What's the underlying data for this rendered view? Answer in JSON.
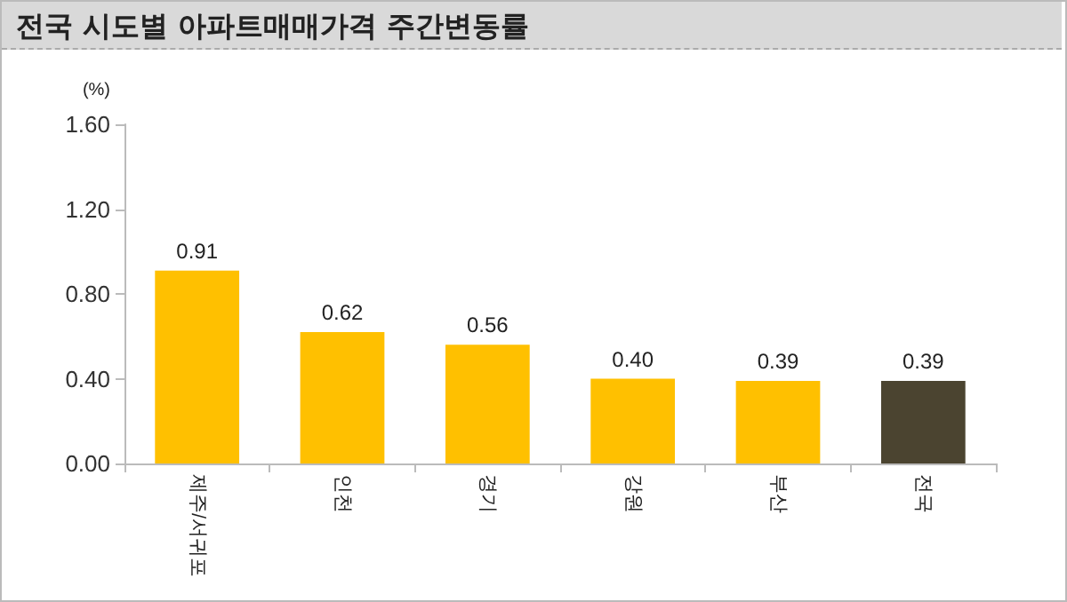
{
  "chart_data": {
    "type": "bar",
    "title": "전국 시도별 아파트매매가격 주간변동률",
    "ylabel": "(%)",
    "categories": [
      "제주/서귀포",
      "인천",
      "경기",
      "강원",
      "부산",
      "전국"
    ],
    "values": [
      0.91,
      0.62,
      0.56,
      0.4,
      0.39,
      0.39
    ],
    "colors": [
      "#ffc000",
      "#ffc000",
      "#ffc000",
      "#ffc000",
      "#ffc000",
      "#4b4430"
    ],
    "value_labels": [
      "0.91",
      "0.62",
      "0.56",
      "0.40",
      "0.39",
      "0.39"
    ],
    "ylim": [
      0,
      1.6
    ],
    "yticks": [
      "0.00",
      "0.40",
      "0.80",
      "1.20",
      "1.60"
    ],
    "grid": false
  }
}
